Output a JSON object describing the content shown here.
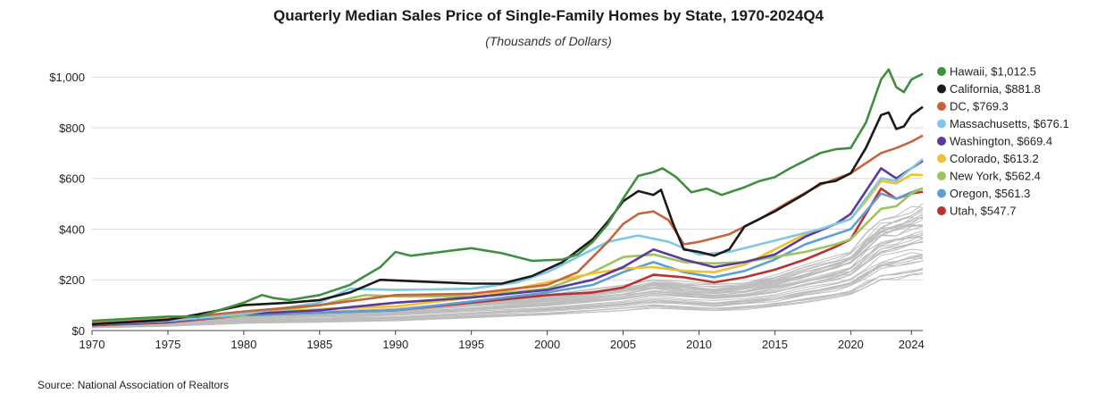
{
  "chart_data": {
    "type": "line",
    "title": "Quarterly Median Sales Price of Single-Family Homes by State, 1970-2024Q4",
    "subtitle": "(Thousands of Dollars)",
    "source": "Source: National Association of Realtors",
    "xlabel": "",
    "ylabel": "",
    "xlim": [
      1970,
      2024.75
    ],
    "ylim": [
      0,
      1050
    ],
    "x_ticks": [
      "1970",
      "1975",
      "1980",
      "1985",
      "1990",
      "1995",
      "2000",
      "2005",
      "2010",
      "2015",
      "2020",
      "2024"
    ],
    "y_ticks": [
      "$0",
      "$200",
      "$400",
      "$600",
      "$800",
      "$1,000"
    ],
    "grid": "horizontal",
    "legend_position": "right",
    "background_series_color": "#bdbdbd",
    "series": [
      {
        "name": "Hawaii, $1,012.5",
        "color": "#3f8f3f",
        "points": [
          [
            1970,
            38
          ],
          [
            1975,
            55
          ],
          [
            1977,
            55
          ],
          [
            1980,
            110
          ],
          [
            1981.2,
            140
          ],
          [
            1982,
            128
          ],
          [
            1983,
            120
          ],
          [
            1985,
            140
          ],
          [
            1987,
            180
          ],
          [
            1989,
            250
          ],
          [
            1990,
            310
          ],
          [
            1991,
            295
          ],
          [
            1993,
            310
          ],
          [
            1995,
            325
          ],
          [
            1997,
            305
          ],
          [
            1999,
            275
          ],
          [
            2001,
            280
          ],
          [
            2002,
            300
          ],
          [
            2003,
            350
          ],
          [
            2004,
            420
          ],
          [
            2005,
            520
          ],
          [
            2006,
            610
          ],
          [
            2007,
            625
          ],
          [
            2007.6,
            640
          ],
          [
            2008.5,
            605
          ],
          [
            2009.5,
            545
          ],
          [
            2010.5,
            560
          ],
          [
            2011.5,
            535
          ],
          [
            2013,
            565
          ],
          [
            2014,
            590
          ],
          [
            2015,
            605
          ],
          [
            2016,
            640
          ],
          [
            2017,
            670
          ],
          [
            2018,
            700
          ],
          [
            2019,
            715
          ],
          [
            2020,
            720
          ],
          [
            2021,
            820
          ],
          [
            2022,
            990
          ],
          [
            2022.5,
            1030
          ],
          [
            2023,
            960
          ],
          [
            2023.5,
            940
          ],
          [
            2024,
            990
          ],
          [
            2024.75,
            1012.5
          ]
        ]
      },
      {
        "name": "California, $881.8",
        "color": "#1a1a1a",
        "points": [
          [
            1970,
            25
          ],
          [
            1975,
            42
          ],
          [
            1978,
            75
          ],
          [
            1980,
            100
          ],
          [
            1983,
            110
          ],
          [
            1985,
            120
          ],
          [
            1987,
            150
          ],
          [
            1989,
            200
          ],
          [
            1991,
            195
          ],
          [
            1993,
            190
          ],
          [
            1995,
            185
          ],
          [
            1997,
            185
          ],
          [
            1999,
            215
          ],
          [
            2001,
            270
          ],
          [
            2003,
            360
          ],
          [
            2004,
            430
          ],
          [
            2005,
            510
          ],
          [
            2006,
            550
          ],
          [
            2007,
            535
          ],
          [
            2007.5,
            555
          ],
          [
            2008.3,
            420
          ],
          [
            2009,
            320
          ],
          [
            2010,
            310
          ],
          [
            2011,
            295
          ],
          [
            2012,
            320
          ],
          [
            2013,
            410
          ],
          [
            2015,
            470
          ],
          [
            2017,
            540
          ],
          [
            2018,
            580
          ],
          [
            2019,
            590
          ],
          [
            2020,
            620
          ],
          [
            2021,
            720
          ],
          [
            2022,
            850
          ],
          [
            2022.5,
            860
          ],
          [
            2023,
            795
          ],
          [
            2023.5,
            805
          ],
          [
            2024,
            850
          ],
          [
            2024.75,
            881.8
          ]
        ]
      },
      {
        "name": "DC, $769.3",
        "color": "#c8643c",
        "points": [
          [
            1970,
            28
          ],
          [
            1975,
            45
          ],
          [
            1980,
            75
          ],
          [
            1985,
            100
          ],
          [
            1990,
            140
          ],
          [
            1995,
            145
          ],
          [
            2000,
            180
          ],
          [
            2002,
            230
          ],
          [
            2004,
            350
          ],
          [
            2005,
            420
          ],
          [
            2006,
            460
          ],
          [
            2007,
            470
          ],
          [
            2008,
            435
          ],
          [
            2009,
            340
          ],
          [
            2010,
            350
          ],
          [
            2012,
            380
          ],
          [
            2014,
            440
          ],
          [
            2016,
            510
          ],
          [
            2018,
            575
          ],
          [
            2020,
            620
          ],
          [
            2021,
            660
          ],
          [
            2022,
            700
          ],
          [
            2023,
            720
          ],
          [
            2024,
            745
          ],
          [
            2024.75,
            769.3
          ]
        ]
      },
      {
        "name": "Massachusetts, $676.1",
        "color": "#7ec8e3",
        "points": [
          [
            1970,
            25
          ],
          [
            1975,
            38
          ],
          [
            1980,
            65
          ],
          [
            1985,
            110
          ],
          [
            1987,
            165
          ],
          [
            1990,
            160
          ],
          [
            1995,
            165
          ],
          [
            1998,
            190
          ],
          [
            2000,
            230
          ],
          [
            2002,
            290
          ],
          [
            2004,
            350
          ],
          [
            2006,
            375
          ],
          [
            2008,
            350
          ],
          [
            2010,
            300
          ],
          [
            2012,
            310
          ],
          [
            2014,
            340
          ],
          [
            2016,
            370
          ],
          [
            2018,
            400
          ],
          [
            2020,
            440
          ],
          [
            2021,
            520
          ],
          [
            2022,
            600
          ],
          [
            2023,
            590
          ],
          [
            2024,
            640
          ],
          [
            2024.75,
            676.1
          ]
        ]
      },
      {
        "name": "Washington, $669.4",
        "color": "#5a3a9a",
        "points": [
          [
            1970,
            22
          ],
          [
            1975,
            35
          ],
          [
            1980,
            65
          ],
          [
            1985,
            80
          ],
          [
            1990,
            110
          ],
          [
            1995,
            130
          ],
          [
            2000,
            160
          ],
          [
            2003,
            200
          ],
          [
            2005,
            250
          ],
          [
            2007,
            320
          ],
          [
            2009,
            280
          ],
          [
            2011,
            250
          ],
          [
            2013,
            270
          ],
          [
            2015,
            300
          ],
          [
            2017,
            370
          ],
          [
            2019,
            420
          ],
          [
            2020,
            460
          ],
          [
            2021,
            550
          ],
          [
            2022,
            640
          ],
          [
            2023,
            600
          ],
          [
            2024,
            640
          ],
          [
            2024.75,
            669.4
          ]
        ]
      },
      {
        "name": "Colorado, $613.2",
        "color": "#f0c030",
        "points": [
          [
            1970,
            22
          ],
          [
            1975,
            35
          ],
          [
            1980,
            65
          ],
          [
            1985,
            85
          ],
          [
            1990,
            95
          ],
          [
            1995,
            130
          ],
          [
            2000,
            190
          ],
          [
            2003,
            225
          ],
          [
            2005,
            245
          ],
          [
            2007,
            250
          ],
          [
            2009,
            235
          ],
          [
            2011,
            230
          ],
          [
            2013,
            260
          ],
          [
            2015,
            320
          ],
          [
            2017,
            380
          ],
          [
            2019,
            420
          ],
          [
            2020,
            440
          ],
          [
            2021,
            510
          ],
          [
            2022,
            590
          ],
          [
            2023,
            580
          ],
          [
            2024,
            615
          ],
          [
            2024.75,
            613.2
          ]
        ]
      },
      {
        "name": "New York, $562.4",
        "color": "#9dc45f",
        "points": [
          [
            1970,
            25
          ],
          [
            1975,
            38
          ],
          [
            1980,
            60
          ],
          [
            1985,
            100
          ],
          [
            1988,
            140
          ],
          [
            1990,
            135
          ],
          [
            1995,
            135
          ],
          [
            2000,
            165
          ],
          [
            2003,
            230
          ],
          [
            2005,
            290
          ],
          [
            2007,
            300
          ],
          [
            2009,
            270
          ],
          [
            2011,
            265
          ],
          [
            2013,
            270
          ],
          [
            2015,
            290
          ],
          [
            2017,
            310
          ],
          [
            2019,
            340
          ],
          [
            2020,
            360
          ],
          [
            2021,
            420
          ],
          [
            2022,
            480
          ],
          [
            2023,
            490
          ],
          [
            2024,
            540
          ],
          [
            2024.75,
            562.4
          ]
        ]
      },
      {
        "name": "Oregon, $561.3",
        "color": "#5b9fd4",
        "points": [
          [
            1970,
            22
          ],
          [
            1975,
            35
          ],
          [
            1980,
            62
          ],
          [
            1985,
            70
          ],
          [
            1990,
            80
          ],
          [
            1995,
            115
          ],
          [
            2000,
            150
          ],
          [
            2003,
            180
          ],
          [
            2005,
            230
          ],
          [
            2007,
            270
          ],
          [
            2009,
            230
          ],
          [
            2011,
            210
          ],
          [
            2013,
            235
          ],
          [
            2015,
            280
          ],
          [
            2017,
            340
          ],
          [
            2019,
            380
          ],
          [
            2020,
            400
          ],
          [
            2021,
            470
          ],
          [
            2022,
            540
          ],
          [
            2023,
            520
          ],
          [
            2024,
            545
          ],
          [
            2024.75,
            561.3
          ]
        ]
      },
      {
        "name": "Utah, $547.7",
        "color": "#b83232",
        "points": [
          [
            1970,
            20
          ],
          [
            1975,
            32
          ],
          [
            1980,
            60
          ],
          [
            1985,
            70
          ],
          [
            1990,
            80
          ],
          [
            1995,
            110
          ],
          [
            2000,
            140
          ],
          [
            2003,
            150
          ],
          [
            2005,
            170
          ],
          [
            2007,
            220
          ],
          [
            2009,
            210
          ],
          [
            2011,
            190
          ],
          [
            2013,
            210
          ],
          [
            2015,
            240
          ],
          [
            2017,
            280
          ],
          [
            2019,
            330
          ],
          [
            2020,
            360
          ],
          [
            2021,
            460
          ],
          [
            2022,
            560
          ],
          [
            2023,
            520
          ],
          [
            2024,
            540
          ],
          [
            2024.75,
            547.7
          ]
        ]
      }
    ]
  }
}
